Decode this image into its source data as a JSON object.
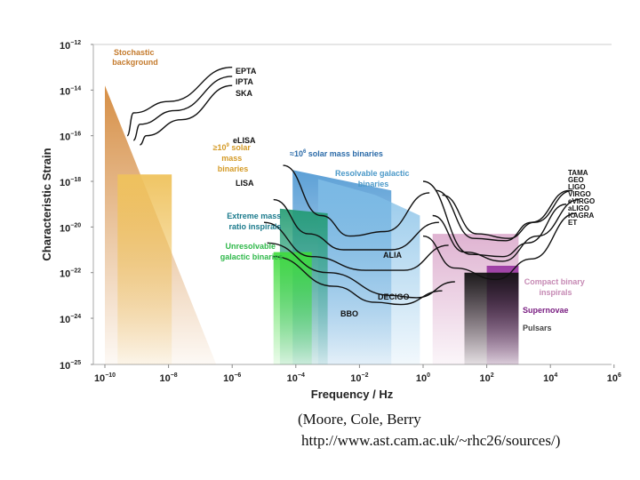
{
  "chart_data": {
    "type": "area",
    "title": "",
    "xlabel": "Frequency / Hz",
    "ylabel": "Characteristic Strain",
    "xscale": "log",
    "yscale": "log",
    "xlim_exp": [
      -10.4,
      6
    ],
    "ylim_exp": [
      -25,
      -12
    ],
    "x_ticks": [
      {
        "exp": -10,
        "label": "10",
        "sup": "−10"
      },
      {
        "exp": -8,
        "label": "10",
        "sup": "−8"
      },
      {
        "exp": -6,
        "label": "10",
        "sup": "−6"
      },
      {
        "exp": -4,
        "label": "10",
        "sup": "−4"
      },
      {
        "exp": -2,
        "label": "10",
        "sup": "−2"
      },
      {
        "exp": 0,
        "label": "10",
        "sup": "0"
      },
      {
        "exp": 2,
        "label": "10",
        "sup": "2"
      },
      {
        "exp": 4,
        "label": "10",
        "sup": "4"
      },
      {
        "exp": 6,
        "label": "10",
        "sup": "6"
      }
    ],
    "y_ticks": [
      {
        "exp": -12,
        "label": "10",
        "sup": "−12"
      },
      {
        "exp": -14,
        "label": "10",
        "sup": "−14"
      },
      {
        "exp": -16,
        "label": "10",
        "sup": "−16"
      },
      {
        "exp": -18,
        "label": "10",
        "sup": "−18"
      },
      {
        "exp": -20,
        "label": "10",
        "sup": "−20"
      },
      {
        "exp": -22,
        "label": "10",
        "sup": "−22"
      },
      {
        "exp": -24,
        "label": "10",
        "sup": "−24"
      },
      {
        "exp": -25,
        "label": "10",
        "sup": "−25"
      }
    ],
    "sources": [
      {
        "name": "stochastic-background",
        "label": [
          "Stochastic",
          "background"
        ],
        "color": "#d4893c",
        "region": [
          [
            -10,
            -13.8
          ],
          [
            -6.5,
            -25
          ],
          [
            -10,
            -25
          ]
        ]
      },
      {
        "name": "supermassive-binaries",
        "label": [
          "≥10⁹ solar",
          "mass",
          "binaries"
        ],
        "color": "#ecc46a",
        "region": [
          [
            -9.6,
            -17.7
          ],
          [
            -7.9,
            -17.7
          ],
          [
            -7.9,
            -25
          ],
          [
            -9.6,
            -25
          ]
        ]
      },
      {
        "name": "million-solar-mass-binaries",
        "label": [
          "≈10⁶ solar mass binaries"
        ],
        "color": "#1f78b4",
        "region": [
          [
            -4.1,
            -17.5
          ],
          [
            -1.0,
            -18.4
          ],
          [
            -1.0,
            -25
          ],
          [
            -4.1,
            -25
          ]
        ]
      },
      {
        "name": "resolvable-galactic-binaries",
        "label": [
          "Resolvable galactic",
          "binaries"
        ],
        "color": "#6baed6",
        "region": [
          [
            -3.3,
            -17.9
          ],
          [
            -1.5,
            -18.6
          ],
          [
            -0.1,
            -19.5
          ],
          [
            -0.1,
            -25
          ],
          [
            -3.3,
            -25
          ]
        ]
      },
      {
        "name": "extreme-mass-ratio-inspirals",
        "label": [
          "Extreme mass",
          "ratio inspirals"
        ],
        "color": "#2a9d6f",
        "region": [
          [
            -4.5,
            -19.2
          ],
          [
            -3.0,
            -19.4
          ],
          [
            -3.0,
            -25
          ],
          [
            -4.5,
            -25
          ]
        ]
      },
      {
        "name": "unresolvable-galactic-binaries",
        "label": [
          "Unresolvable",
          "galactic binaries"
        ],
        "color": "#41d13c",
        "region": [
          [
            -4.7,
            -21.1
          ],
          [
            -3.5,
            -21.1
          ],
          [
            -3.5,
            -25
          ],
          [
            -4.7,
            -25
          ]
        ]
      },
      {
        "name": "compact-binary-inspirals",
        "label": [
          "Compact binary",
          "inspirals"
        ],
        "color": "#c68ab4",
        "region": [
          [
            0.3,
            -20.3
          ],
          [
            3.0,
            -20.3
          ],
          [
            3.0,
            -25
          ],
          [
            0.3,
            -25
          ]
        ]
      },
      {
        "name": "supernovae",
        "label": [
          "Supernovae"
        ],
        "color": "#8a2a8e",
        "region": [
          [
            2.0,
            -21.7
          ],
          [
            3.0,
            -21.7
          ],
          [
            3.0,
            -25
          ],
          [
            2.0,
            -25
          ]
        ]
      },
      {
        "name": "pulsars",
        "label": [
          "Pulsars"
        ],
        "color": "#111111",
        "region": [
          [
            1.3,
            -22.0
          ],
          [
            3.0,
            -22.0
          ],
          [
            3.0,
            -25
          ],
          [
            1.3,
            -25
          ]
        ]
      }
    ],
    "detectors": [
      {
        "name": "EPTA",
        "curve": [
          [
            -9.3,
            -16.0
          ],
          [
            -9.1,
            -15.0
          ],
          [
            -8.0,
            -14.5
          ],
          [
            -6.0,
            -13.0
          ]
        ]
      },
      {
        "name": "IPTA",
        "curve": [
          [
            -9.1,
            -16.2
          ],
          [
            -8.9,
            -15.5
          ],
          [
            -7.8,
            -14.9
          ],
          [
            -6.0,
            -13.4
          ]
        ]
      },
      {
        "name": "SKA",
        "curve": [
          [
            -8.9,
            -16.4
          ],
          [
            -8.7,
            -16.0
          ],
          [
            -7.6,
            -15.3
          ],
          [
            -6.0,
            -13.8
          ]
        ]
      },
      {
        "name": "eLISA",
        "curve": [
          [
            -4.4,
            -17.3
          ],
          [
            -3.2,
            -19.5
          ],
          [
            -2.3,
            -20.4
          ],
          [
            -1.2,
            -20.2
          ],
          [
            0.2,
            -18.5
          ]
        ]
      },
      {
        "name": "LISA",
        "curve": [
          [
            -4.7,
            -18.8
          ],
          [
            -3.6,
            -20.3
          ],
          [
            -2.5,
            -21.0
          ],
          [
            -1.0,
            -21.0
          ],
          [
            0.5,
            -19.8
          ]
        ]
      },
      {
        "name": "ALIA",
        "curve": [
          [
            -5.0,
            -19.8
          ],
          [
            -3.5,
            -21.3
          ],
          [
            -1.8,
            -21.9
          ],
          [
            -0.6,
            -21.9
          ],
          [
            0.8,
            -20.8
          ]
        ]
      },
      {
        "name": "DECIGO",
        "curve": [
          [
            -4.9,
            -20.7
          ],
          [
            -3.0,
            -22.0
          ],
          [
            -1.0,
            -23.0
          ],
          [
            -0.2,
            -23.1
          ],
          [
            1.0,
            -22.4
          ]
        ]
      },
      {
        "name": "BBO",
        "curve": [
          [
            -4.7,
            -21.3
          ],
          [
            -2.8,
            -22.6
          ],
          [
            -1.5,
            -23.3
          ],
          [
            -0.7,
            -23.4
          ],
          [
            0.6,
            -22.8
          ]
        ]
      },
      {
        "name": "TAMA",
        "curve": [
          [
            0.0,
            -18.0
          ],
          [
            1.5,
            -21.2
          ],
          [
            2.5,
            -21.3
          ],
          [
            3.3,
            -20.7
          ],
          [
            4.5,
            -19.0
          ]
        ]
      },
      {
        "name": "GEO",
        "curve": [
          [
            0.4,
            -18.4
          ],
          [
            1.6,
            -20.5
          ],
          [
            2.6,
            -20.6
          ],
          [
            3.4,
            -19.8
          ],
          [
            4.6,
            -18.4
          ]
        ]
      },
      {
        "name": "LIGO",
        "curve": [
          [
            0.6,
            -18.6
          ],
          [
            1.7,
            -20.3
          ],
          [
            2.7,
            -20.5
          ],
          [
            3.5,
            -19.8
          ],
          [
            4.7,
            -18.4
          ]
        ]
      },
      {
        "name": "aLIGO",
        "curve": [
          [
            0.3,
            -19.5
          ],
          [
            1.3,
            -21.1
          ],
          [
            2.5,
            -21.5
          ],
          [
            3.6,
            -20.4
          ],
          [
            4.9,
            -18.8
          ]
        ]
      },
      {
        "name": "ET",
        "curve": [
          [
            0.0,
            -20.4
          ],
          [
            1.0,
            -21.8
          ],
          [
            2.3,
            -22.3
          ],
          [
            3.4,
            -21.4
          ],
          [
            4.8,
            -19.4
          ]
        ]
      }
    ],
    "source_labels": {
      "stochastic": [
        "Stochastic",
        "background"
      ],
      "supermassive": [
        "≥10",
        "9",
        " solar",
        "mass",
        "binaries"
      ],
      "million": [
        "≈10",
        "6",
        " solar mass binaries"
      ],
      "resolvable": [
        "Resolvable galactic",
        "binaries"
      ],
      "emri": [
        "Extreme mass",
        "ratio inspirals"
      ],
      "unresolvable": [
        "Unresolvable",
        "galactic binaries"
      ],
      "compact": [
        "Compact binary",
        "inspirals"
      ],
      "supernovae": [
        "Supernovae"
      ],
      "pulsars": [
        "Pulsars"
      ]
    },
    "detector_labels": {
      "pta": [
        "EPTA",
        "IPTA",
        "SKA"
      ],
      "elisa": "eLISA",
      "lisa": "LISA",
      "alia": "ALIA",
      "decigo": "DECIGO",
      "bbo": "BBO",
      "ground": [
        "TAMA",
        "GEO",
        "LIGO",
        "VIRGO",
        "eVIRGO",
        "aLIGO",
        "KAGRA",
        "ET"
      ]
    }
  },
  "caption": {
    "line1": "(Moore, Cole, Berry",
    "line2": "http://www.ast.cam.ac.uk/~rhc26/sources/)"
  },
  "colors": {
    "stochastic": "#c47a2c",
    "supermassive": "#d49a26",
    "million": "#2a6aa8",
    "resolvable": "#4a98c8",
    "emri": "#1b7a8c",
    "unresolvable": "#2fb84a",
    "compact": "#c68ab4",
    "supernovae": "#7a1f82",
    "pulsars": "#444444"
  }
}
